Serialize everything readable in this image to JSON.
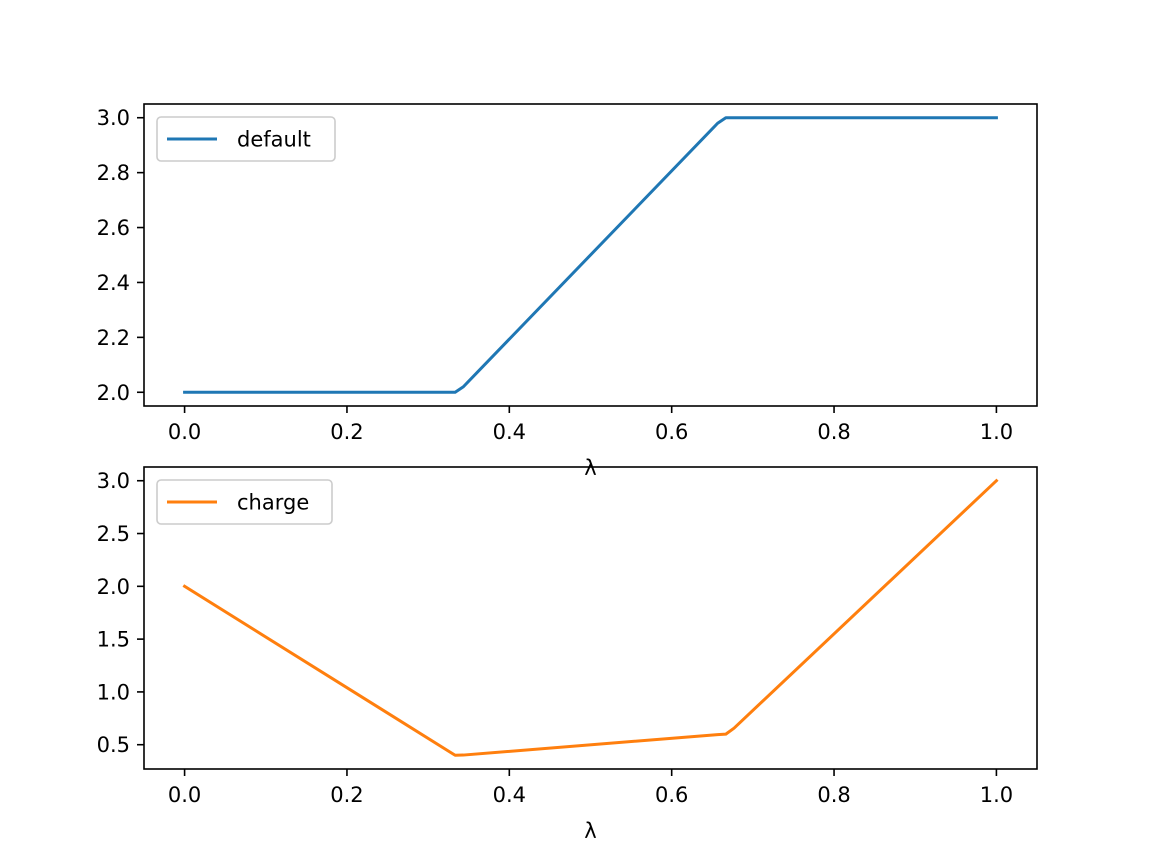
{
  "chart_data": [
    {
      "type": "line",
      "xlabel": "λ",
      "ylabel": "",
      "xlim": [
        -0.05,
        1.05
      ],
      "ylim": [
        1.95,
        3.05
      ],
      "xticks": [
        0.0,
        0.2,
        0.4,
        0.6,
        0.8,
        1.0
      ],
      "xtick_labels": [
        "0.0",
        "0.2",
        "0.4",
        "0.6",
        "0.8",
        "1.0"
      ],
      "yticks": [
        2.0,
        2.2,
        2.4,
        2.6,
        2.8,
        3.0
      ],
      "ytick_labels": [
        "2.0",
        "2.2",
        "2.4",
        "2.6",
        "2.8",
        "3.0"
      ],
      "grid": false,
      "legend_position": "upper-left",
      "series": [
        {
          "name": "default",
          "color": "#1f77b4",
          "x": [
            0.0,
            0.3283,
            0.3333,
            0.3434,
            0.6566,
            0.6667,
            0.6768,
            1.0
          ],
          "y": [
            2.0,
            2.0,
            2.0,
            2.0202,
            2.9798,
            3.0,
            3.0,
            3.0
          ]
        }
      ]
    },
    {
      "type": "line",
      "xlabel": "λ",
      "ylabel": "",
      "xlim": [
        -0.05,
        1.05
      ],
      "ylim": [
        0.27,
        3.13
      ],
      "xticks": [
        0.0,
        0.2,
        0.4,
        0.6,
        0.8,
        1.0
      ],
      "xtick_labels": [
        "0.0",
        "0.2",
        "0.4",
        "0.6",
        "0.8",
        "1.0"
      ],
      "yticks": [
        0.5,
        1.0,
        1.5,
        2.0,
        2.5,
        3.0
      ],
      "ytick_labels": [
        "0.5",
        "1.0",
        "1.5",
        "2.0",
        "2.5",
        "3.0"
      ],
      "grid": false,
      "legend_position": "upper-left",
      "series": [
        {
          "name": "charge",
          "color": "#ff7f0e",
          "x": [
            0.0,
            0.3283,
            0.3333,
            0.3434,
            0.6566,
            0.6667,
            0.6768,
            1.0
          ],
          "y": [
            2.0,
            0.4242,
            0.4,
            0.402,
            0.596,
            0.6,
            0.6566,
            3.0
          ]
        }
      ]
    }
  ]
}
